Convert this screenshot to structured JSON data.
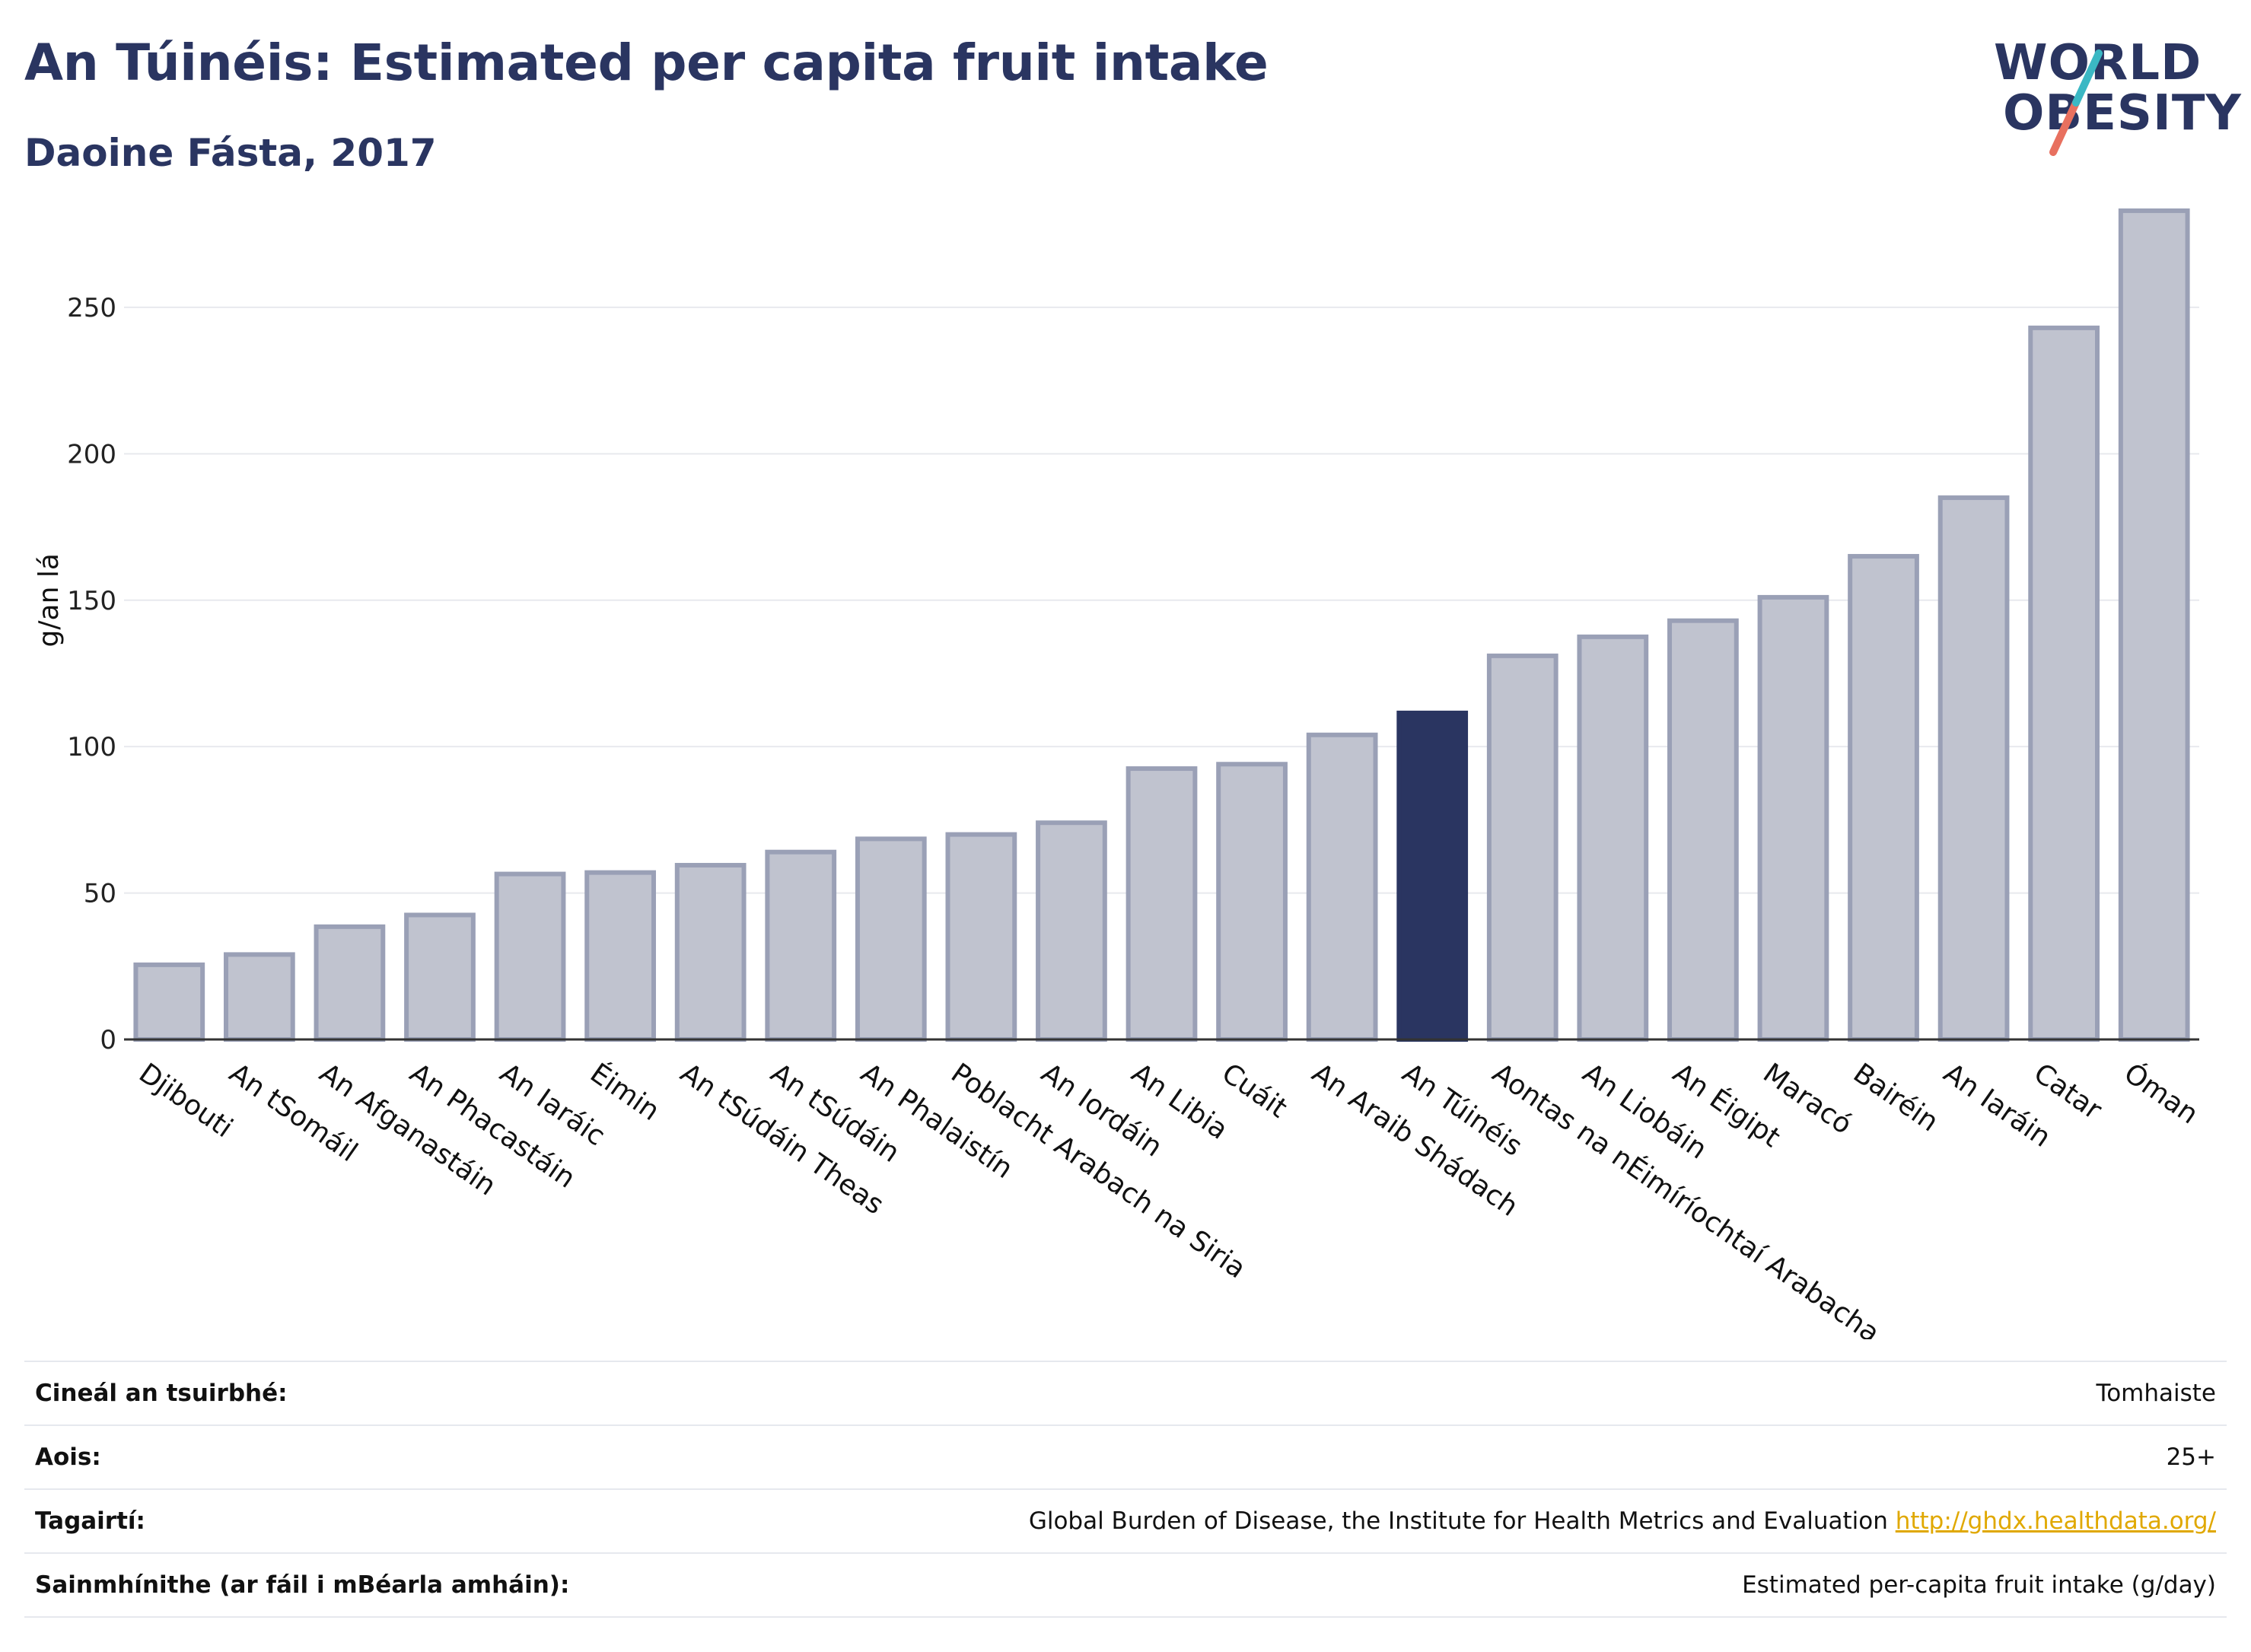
{
  "header": {
    "title": "An Túinéis: Estimated per capita fruit intake",
    "subtitle": "Daoine Fásta, 2017"
  },
  "logo": {
    "line1": "WORLD",
    "line2": "OBESITY",
    "colors": {
      "text": "#2a3561",
      "slash_top": "#3bb8c4",
      "slash_bottom": "#e8705f"
    }
  },
  "chart_data": {
    "type": "bar",
    "ylabel": "g/an lá",
    "ylim": [
      0,
      290
    ],
    "yticks": [
      0,
      50,
      100,
      150,
      200,
      250
    ],
    "grid": true,
    "highlight": "An Túinéis",
    "colors": {
      "bar": "#c0c3cf",
      "bar_border": "#9aa0b6",
      "highlight": "#2a3561"
    },
    "categories": [
      "Djibouti",
      "An tSomáil",
      "An Afganastáin",
      "An Phacastáin",
      "An Iaráic",
      "Éimin",
      "An tSúdáin Theas",
      "An tSúdáin",
      "An Phalaistín",
      "Poblacht Arabach na Siria",
      "An Iordáin",
      "An Libia",
      "Cuáit",
      "An Araib Shádach",
      "An Túinéis",
      "Aontas na nÉimíríochtaí Arabacha",
      "An Liobáin",
      "An Éigipt",
      "Maracó",
      "Bairéin",
      "An Iaráin",
      "Catar",
      "Óman"
    ],
    "values": [
      25.5,
      29,
      38.5,
      42.5,
      56.5,
      57,
      59.5,
      64,
      68.5,
      70,
      74,
      92.5,
      94,
      104,
      111.5,
      131,
      137.5,
      143,
      151,
      165,
      185,
      243,
      283
    ]
  },
  "meta": {
    "rows": [
      {
        "key": "Cineál an tsuirbhé:",
        "value": "Tomhaiste"
      },
      {
        "key": "Aois:",
        "value": "25+"
      },
      {
        "key": "Tagairtí:",
        "value": "Global Burden of Disease, the Institute for Health Metrics and Evaluation ",
        "link": "http://ghdx.healthdata.org/"
      },
      {
        "key": "Sainmhínithe (ar fáil i mBéarla amháin):",
        "value": "Estimated per-capita fruit intake (g/day)"
      }
    ]
  }
}
